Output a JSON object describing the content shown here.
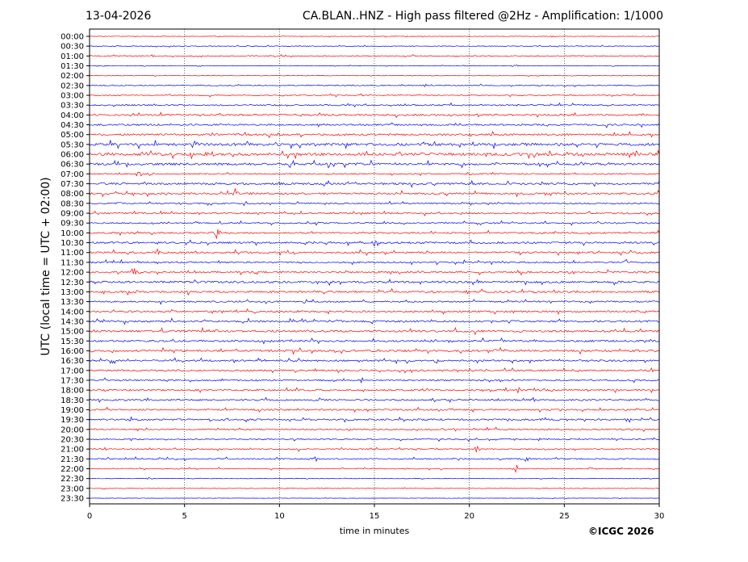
{
  "header": {
    "date": "13-04-2026",
    "title": "CA.BLAN..HNZ - High pass filtered @2Hz - Amplification: 1/1000"
  },
  "footer": {
    "copyright": "©ICGC 2026"
  },
  "chart_data": {
    "type": "line",
    "title": "CA.BLAN..HNZ - High pass filtered @2Hz - Amplification: 1/1000",
    "xlabel": "time in minutes",
    "ylabel": "UTC (local time = UTC + 02:00)",
    "xlim": [
      0,
      30
    ],
    "x_ticks": [
      0,
      5,
      10,
      15,
      20,
      25,
      30
    ],
    "grid": "vertical dotted at each 5 minutes",
    "trace_colors": [
      "#ff0000",
      "#0000ff"
    ],
    "rows": [
      "00:00",
      "00:30",
      "01:00",
      "01:30",
      "02:00",
      "02:30",
      "03:00",
      "03:30",
      "04:00",
      "04:30",
      "05:00",
      "05:30",
      "06:00",
      "06:30",
      "07:00",
      "07:30",
      "08:00",
      "08:30",
      "09:00",
      "09:30",
      "10:00",
      "10:30",
      "11:00",
      "11:30",
      "12:00",
      "12:30",
      "13:00",
      "13:30",
      "14:00",
      "14:30",
      "15:00",
      "15:30",
      "16:00",
      "16:30",
      "17:00",
      "17:30",
      "18:00",
      "18:30",
      "19:00",
      "19:30",
      "20:00",
      "20:30",
      "21:00",
      "21:30",
      "22:00",
      "22:30",
      "23:00",
      "23:30"
    ],
    "noise_level": [
      0.3,
      0.4,
      0.5,
      0.3,
      0.3,
      0.5,
      0.6,
      0.8,
      1.0,
      1.0,
      1.1,
      1.5,
      1.6,
      1.3,
      0.7,
      1.2,
      1.1,
      0.8,
      0.9,
      0.8,
      0.9,
      1.1,
      1.0,
      0.9,
      1.0,
      1.2,
      1.1,
      0.9,
      1.0,
      1.1,
      1.2,
      1.1,
      1.2,
      1.0,
      0.9,
      0.9,
      1.0,
      0.9,
      0.9,
      1.0,
      0.8,
      0.7,
      0.6,
      0.7,
      0.5,
      0.3,
      0.3,
      0.2
    ],
    "events": [
      {
        "row": "00:00",
        "minute": 24.4,
        "amplitude": 2
      },
      {
        "row": "01:00",
        "minute": 3.3,
        "amplitude": 2
      },
      {
        "row": "01:30",
        "minute": 22.4,
        "amplitude": 3
      },
      {
        "row": "04:00",
        "minute": 12.1,
        "amplitude": 4
      },
      {
        "row": "05:30",
        "minute": 5.5,
        "amplitude": 8
      },
      {
        "row": "06:00",
        "minute": 6.4,
        "amplitude": 4
      },
      {
        "row": "06:00",
        "minute": 28.8,
        "amplitude": 9
      },
      {
        "row": "06:30",
        "minute": 12.6,
        "amplitude": 6
      },
      {
        "row": "06:30",
        "minute": 21.5,
        "amplitude": 6
      },
      {
        "row": "07:00",
        "minute": 2.6,
        "amplitude": 5
      },
      {
        "row": "07:00",
        "minute": 3.2,
        "amplitude": 4
      },
      {
        "row": "08:00",
        "minute": 7.7,
        "amplitude": 9
      },
      {
        "row": "08:30",
        "minute": 1.6,
        "amplitude": 4
      },
      {
        "row": "10:00",
        "minute": 6.7,
        "amplitude": 9
      },
      {
        "row": "10:30",
        "minute": 15.1,
        "amplitude": 11
      },
      {
        "row": "10:30",
        "minute": 25.3,
        "amplitude": 4
      },
      {
        "row": "11:00",
        "minute": 3.6,
        "amplitude": 6
      },
      {
        "row": "11:30",
        "minute": 28.3,
        "amplitude": 4
      },
      {
        "row": "12:00",
        "minute": 5.5,
        "amplitude": 4
      },
      {
        "row": "12:00",
        "minute": 2.4,
        "amplitude": 14
      },
      {
        "row": "13:00",
        "minute": 2.5,
        "amplitude": 4
      },
      {
        "row": "15:00",
        "minute": 6.7,
        "amplitude": 3
      },
      {
        "row": "16:00",
        "minute": 21.5,
        "amplitude": 3
      },
      {
        "row": "16:30",
        "minute": 8.9,
        "amplitude": 3
      },
      {
        "row": "18:30",
        "minute": 12.1,
        "amplitude": 3
      },
      {
        "row": "21:00",
        "minute": 11.0,
        "amplitude": 3
      },
      {
        "row": "21:00",
        "minute": 20.4,
        "amplitude": 7
      },
      {
        "row": "21:30",
        "minute": 11.9,
        "amplitude": 5
      },
      {
        "row": "21:30",
        "minute": 23.0,
        "amplitude": 5
      },
      {
        "row": "22:00",
        "minute": 22.5,
        "amplitude": 7
      },
      {
        "row": "22:00",
        "minute": 26.4,
        "amplitude": 5
      },
      {
        "row": "22:30",
        "minute": 3.1,
        "amplitude": 3
      },
      {
        "row": "23:00",
        "minute": 12.2,
        "amplitude": 3
      }
    ]
  }
}
